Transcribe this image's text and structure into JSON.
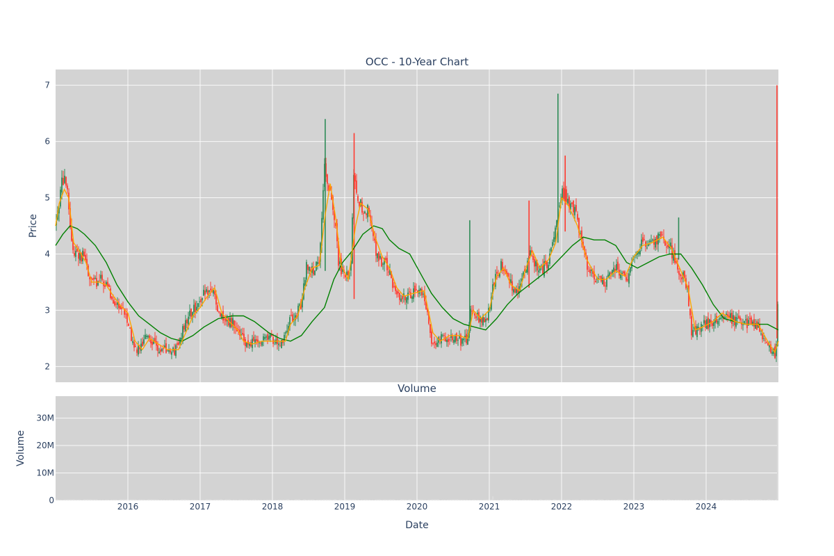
{
  "chart_data": [
    {
      "type": "candlestick",
      "title": "OCC - 10-Year Chart",
      "xlabel": "",
      "ylabel": "Price",
      "ylim": [
        1.72,
        7.28
      ],
      "yticks": [
        2,
        3,
        4,
        5,
        6,
        7
      ],
      "xlim": [
        2015.0,
        2025.0
      ],
      "grid": true,
      "up_color": "#2e8b57",
      "down_color": "#ff3b30",
      "ma_short_color": "#ffa500",
      "ma_long_color": "#008000",
      "background": "#d3d3d3",
      "price_path": [
        [
          2015.0,
          4.5
        ],
        [
          2015.05,
          4.9
        ],
        [
          2015.08,
          5.25
        ],
        [
          2015.12,
          5.3
        ],
        [
          2015.17,
          5.05
        ],
        [
          2015.2,
          4.4
        ],
        [
          2015.25,
          4.05
        ],
        [
          2015.33,
          4.0
        ],
        [
          2015.42,
          3.9
        ],
        [
          2015.46,
          3.55
        ],
        [
          2015.55,
          3.5
        ],
        [
          2015.65,
          3.55
        ],
        [
          2015.75,
          3.3
        ],
        [
          2015.83,
          3.15
        ],
        [
          2015.92,
          3.0
        ],
        [
          2016.0,
          2.85
        ],
        [
          2016.08,
          2.3
        ],
        [
          2016.17,
          2.35
        ],
        [
          2016.25,
          2.55
        ],
        [
          2016.35,
          2.45
        ],
        [
          2016.45,
          2.3
        ],
        [
          2016.55,
          2.3
        ],
        [
          2016.65,
          2.25
        ],
        [
          2016.75,
          2.6
        ],
        [
          2016.85,
          2.9
        ],
        [
          2016.95,
          3.1
        ],
        [
          2017.05,
          3.3
        ],
        [
          2017.15,
          3.4
        ],
        [
          2017.25,
          3.0
        ],
        [
          2017.35,
          2.75
        ],
        [
          2017.45,
          2.8
        ],
        [
          2017.55,
          2.55
        ],
        [
          2017.65,
          2.4
        ],
        [
          2017.75,
          2.45
        ],
        [
          2017.85,
          2.45
        ],
        [
          2017.95,
          2.5
        ],
        [
          2018.05,
          2.45
        ],
        [
          2018.15,
          2.45
        ],
        [
          2018.22,
          2.8
        ],
        [
          2018.3,
          2.85
        ],
        [
          2018.4,
          3.1
        ],
        [
          2018.47,
          3.8
        ],
        [
          2018.55,
          3.7
        ],
        [
          2018.65,
          3.8
        ],
        [
          2018.72,
          5.5
        ],
        [
          2018.78,
          5.2
        ],
        [
          2018.85,
          4.8
        ],
        [
          2018.92,
          3.8
        ],
        [
          2019.0,
          3.6
        ],
        [
          2019.08,
          3.6
        ],
        [
          2019.13,
          5.5
        ],
        [
          2019.18,
          5.0
        ],
        [
          2019.25,
          4.8
        ],
        [
          2019.35,
          4.75
        ],
        [
          2019.42,
          4.1
        ],
        [
          2019.5,
          3.85
        ],
        [
          2019.58,
          3.8
        ],
        [
          2019.66,
          3.5
        ],
        [
          2019.75,
          3.25
        ],
        [
          2019.85,
          3.25
        ],
        [
          2020.0,
          3.35
        ],
        [
          2020.1,
          3.3
        ],
        [
          2020.2,
          2.4
        ],
        [
          2020.3,
          2.5
        ],
        [
          2020.4,
          2.5
        ],
        [
          2020.5,
          2.55
        ],
        [
          2020.6,
          2.45
        ],
        [
          2020.7,
          2.5
        ],
        [
          2020.75,
          3.1
        ],
        [
          2020.85,
          2.85
        ],
        [
          2020.95,
          2.8
        ],
        [
          2021.0,
          3.0
        ],
        [
          2021.08,
          3.6
        ],
        [
          2021.17,
          3.8
        ],
        [
          2021.25,
          3.7
        ],
        [
          2021.33,
          3.35
        ],
        [
          2021.42,
          3.35
        ],
        [
          2021.5,
          3.8
        ],
        [
          2021.58,
          4.05
        ],
        [
          2021.67,
          3.7
        ],
        [
          2021.75,
          3.75
        ],
        [
          2021.83,
          3.9
        ],
        [
          2021.92,
          4.4
        ],
        [
          2021.98,
          5.0
        ],
        [
          2022.05,
          5.1
        ],
        [
          2022.12,
          4.8
        ],
        [
          2022.2,
          4.7
        ],
        [
          2022.27,
          4.3
        ],
        [
          2022.35,
          3.8
        ],
        [
          2022.45,
          3.6
        ],
        [
          2022.55,
          3.5
        ],
        [
          2022.65,
          3.55
        ],
        [
          2022.75,
          3.75
        ],
        [
          2022.85,
          3.6
        ],
        [
          2022.95,
          3.65
        ],
        [
          2023.0,
          4.0
        ],
        [
          2023.1,
          4.15
        ],
        [
          2023.2,
          4.2
        ],
        [
          2023.3,
          4.25
        ],
        [
          2023.4,
          4.3
        ],
        [
          2023.5,
          4.15
        ],
        [
          2023.6,
          3.7
        ],
        [
          2023.7,
          3.6
        ],
        [
          2023.75,
          3.3
        ],
        [
          2023.8,
          2.6
        ],
        [
          2023.9,
          2.7
        ],
        [
          2024.0,
          2.75
        ],
        [
          2024.1,
          2.8
        ],
        [
          2024.2,
          2.95
        ],
        [
          2024.3,
          2.9
        ],
        [
          2024.4,
          2.8
        ],
        [
          2024.5,
          2.75
        ],
        [
          2024.6,
          2.75
        ],
        [
          2024.7,
          2.75
        ],
        [
          2024.8,
          2.5
        ],
        [
          2024.9,
          2.3
        ],
        [
          2024.95,
          2.2
        ],
        [
          2024.985,
          2.5
        ],
        [
          2024.995,
          3.8
        ]
      ],
      "ma_short": [
        [
          2015.0,
          4.5
        ],
        [
          2015.05,
          4.9
        ],
        [
          2015.12,
          5.15
        ],
        [
          2015.18,
          5.0
        ],
        [
          2015.25,
          4.2
        ],
        [
          2015.33,
          4.05
        ],
        [
          2015.42,
          3.85
        ],
        [
          2015.5,
          3.5
        ],
        [
          2015.6,
          3.5
        ],
        [
          2015.7,
          3.45
        ],
        [
          2015.8,
          3.25
        ],
        [
          2015.92,
          3.05
        ],
        [
          2016.0,
          2.95
        ],
        [
          2016.1,
          2.45
        ],
        [
          2016.2,
          2.3
        ],
        [
          2016.3,
          2.5
        ],
        [
          2016.42,
          2.4
        ],
        [
          2016.55,
          2.3
        ],
        [
          2016.7,
          2.3
        ],
        [
          2016.8,
          2.6
        ],
        [
          2016.9,
          2.9
        ],
        [
          2017.0,
          3.05
        ],
        [
          2017.1,
          3.25
        ],
        [
          2017.2,
          3.4
        ],
        [
          2017.3,
          2.95
        ],
        [
          2017.4,
          2.8
        ],
        [
          2017.52,
          2.65
        ],
        [
          2017.6,
          2.45
        ],
        [
          2017.72,
          2.4
        ],
        [
          2017.85,
          2.45
        ],
        [
          2017.98,
          2.45
        ],
        [
          2018.1,
          2.45
        ],
        [
          2018.18,
          2.45
        ],
        [
          2018.25,
          2.75
        ],
        [
          2018.35,
          2.9
        ],
        [
          2018.45,
          3.4
        ],
        [
          2018.55,
          3.75
        ],
        [
          2018.65,
          3.8
        ],
        [
          2018.73,
          4.7
        ],
        [
          2018.8,
          5.25
        ],
        [
          2018.88,
          4.6
        ],
        [
          2018.95,
          3.8
        ],
        [
          2019.05,
          3.55
        ],
        [
          2019.15,
          4.5
        ],
        [
          2019.22,
          4.9
        ],
        [
          2019.32,
          4.8
        ],
        [
          2019.42,
          4.3
        ],
        [
          2019.52,
          3.95
        ],
        [
          2019.62,
          3.75
        ],
        [
          2019.72,
          3.4
        ],
        [
          2019.82,
          3.25
        ],
        [
          2019.95,
          3.3
        ],
        [
          2020.1,
          3.35
        ],
        [
          2020.22,
          2.6
        ],
        [
          2020.32,
          2.45
        ],
        [
          2020.45,
          2.55
        ],
        [
          2020.58,
          2.55
        ],
        [
          2020.7,
          2.5
        ],
        [
          2020.78,
          3.0
        ],
        [
          2020.88,
          2.85
        ],
        [
          2021.0,
          3.0
        ],
        [
          2021.1,
          3.6
        ],
        [
          2021.2,
          3.75
        ],
        [
          2021.3,
          3.45
        ],
        [
          2021.42,
          3.35
        ],
        [
          2021.52,
          3.8
        ],
        [
          2021.6,
          4.05
        ],
        [
          2021.7,
          3.75
        ],
        [
          2021.82,
          3.9
        ],
        [
          2021.92,
          4.2
        ],
        [
          2022.0,
          5.0
        ],
        [
          2022.1,
          4.85
        ],
        [
          2022.22,
          4.5
        ],
        [
          2022.35,
          3.9
        ],
        [
          2022.5,
          3.55
        ],
        [
          2022.62,
          3.55
        ],
        [
          2022.75,
          3.7
        ],
        [
          2022.88,
          3.6
        ],
        [
          2023.0,
          3.95
        ],
        [
          2023.12,
          4.15
        ],
        [
          2023.25,
          4.2
        ],
        [
          2023.4,
          4.3
        ],
        [
          2023.52,
          4.1
        ],
        [
          2023.65,
          3.7
        ],
        [
          2023.75,
          3.4
        ],
        [
          2023.85,
          2.65
        ],
        [
          2023.95,
          2.7
        ],
        [
          2024.1,
          2.8
        ],
        [
          2024.22,
          2.95
        ],
        [
          2024.4,
          2.8
        ],
        [
          2024.55,
          2.75
        ],
        [
          2024.72,
          2.75
        ],
        [
          2024.85,
          2.45
        ],
        [
          2024.95,
          2.25
        ],
        [
          2025.0,
          2.45
        ]
      ],
      "ma_long": [
        [
          2015.0,
          4.15
        ],
        [
          2015.1,
          4.35
        ],
        [
          2015.2,
          4.5
        ],
        [
          2015.3,
          4.45
        ],
        [
          2015.4,
          4.35
        ],
        [
          2015.55,
          4.15
        ],
        [
          2015.7,
          3.85
        ],
        [
          2015.85,
          3.45
        ],
        [
          2016.0,
          3.15
        ],
        [
          2016.15,
          2.9
        ],
        [
          2016.3,
          2.75
        ],
        [
          2016.45,
          2.6
        ],
        [
          2016.6,
          2.5
        ],
        [
          2016.75,
          2.45
        ],
        [
          2016.9,
          2.55
        ],
        [
          2017.05,
          2.7
        ],
        [
          2017.25,
          2.85
        ],
        [
          2017.45,
          2.9
        ],
        [
          2017.6,
          2.9
        ],
        [
          2017.75,
          2.8
        ],
        [
          2017.95,
          2.6
        ],
        [
          2018.1,
          2.5
        ],
        [
          2018.25,
          2.45
        ],
        [
          2018.4,
          2.55
        ],
        [
          2018.55,
          2.8
        ],
        [
          2018.72,
          3.05
        ],
        [
          2018.85,
          3.55
        ],
        [
          2018.97,
          3.85
        ],
        [
          2019.1,
          4.05
        ],
        [
          2019.25,
          4.35
        ],
        [
          2019.4,
          4.5
        ],
        [
          2019.52,
          4.45
        ],
        [
          2019.62,
          4.25
        ],
        [
          2019.75,
          4.1
        ],
        [
          2019.9,
          4.0
        ],
        [
          2020.05,
          3.65
        ],
        [
          2020.2,
          3.3
        ],
        [
          2020.35,
          3.05
        ],
        [
          2020.5,
          2.85
        ],
        [
          2020.65,
          2.75
        ],
        [
          2020.8,
          2.7
        ],
        [
          2020.95,
          2.65
        ],
        [
          2021.1,
          2.85
        ],
        [
          2021.25,
          3.1
        ],
        [
          2021.4,
          3.3
        ],
        [
          2021.55,
          3.45
        ],
        [
          2021.7,
          3.6
        ],
        [
          2021.85,
          3.75
        ],
        [
          2022.0,
          3.95
        ],
        [
          2022.15,
          4.15
        ],
        [
          2022.3,
          4.3
        ],
        [
          2022.45,
          4.25
        ],
        [
          2022.6,
          4.25
        ],
        [
          2022.75,
          4.15
        ],
        [
          2022.9,
          3.85
        ],
        [
          2023.05,
          3.75
        ],
        [
          2023.2,
          3.85
        ],
        [
          2023.35,
          3.95
        ],
        [
          2023.5,
          4.0
        ],
        [
          2023.65,
          4.0
        ],
        [
          2023.8,
          3.75
        ],
        [
          2023.95,
          3.45
        ],
        [
          2024.1,
          3.1
        ],
        [
          2024.25,
          2.85
        ],
        [
          2024.4,
          2.8
        ],
        [
          2024.55,
          2.75
        ],
        [
          2024.7,
          2.75
        ],
        [
          2024.85,
          2.75
        ],
        [
          2025.0,
          2.65
        ]
      ],
      "spikes": [
        [
          2018.73,
          3.7,
          6.4
        ],
        [
          2019.13,
          3.2,
          6.15
        ],
        [
          2020.73,
          2.6,
          4.6
        ],
        [
          2021.55,
          3.4,
          4.95
        ],
        [
          2021.95,
          4.2,
          6.85
        ],
        [
          2022.05,
          4.4,
          5.75
        ],
        [
          2023.62,
          3.9,
          4.65
        ],
        [
          2024.98,
          2.5,
          7.0
        ]
      ]
    },
    {
      "type": "bar",
      "title": "Volume",
      "xlabel": "Date",
      "ylabel": "Volume",
      "ylim": [
        0,
        38000000
      ],
      "yticks": [
        0,
        10000000,
        20000000,
        30000000
      ],
      "ytick_labels": [
        "0",
        "10M",
        "20M",
        "30M"
      ],
      "xticks": [
        2016,
        2017,
        2018,
        2019,
        2020,
        2021,
        2022,
        2023,
        2024
      ],
      "xtick_labels": [
        "2016",
        "2017",
        "2018",
        "2019",
        "2020",
        "2021",
        "2022",
        "2023",
        "2024"
      ],
      "grid": true,
      "bar_color": "#dcdcdc",
      "spikes": [
        [
          2017.25,
          300000
        ],
        [
          2018.75,
          400000
        ],
        [
          2021.05,
          1500000
        ],
        [
          2024.99,
          38000000
        ]
      ]
    }
  ]
}
